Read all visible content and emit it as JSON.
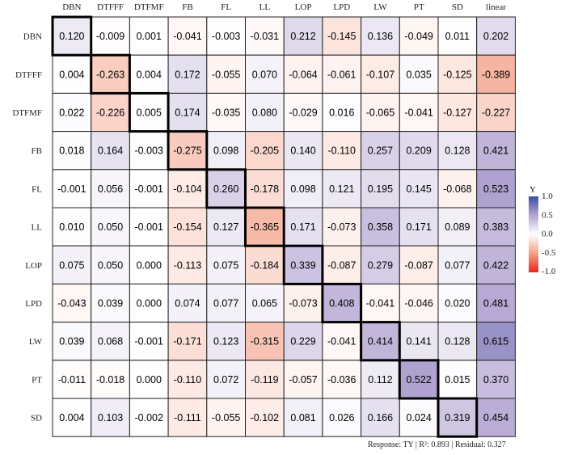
{
  "chart_data": {
    "type": "heatmap",
    "columns": [
      "DBN",
      "DTFFF",
      "DTFMF",
      "FB",
      "FL",
      "LL",
      "LOP",
      "LPD",
      "LW",
      "PT",
      "SD",
      "linear"
    ],
    "rows": [
      "DBN",
      "DTFFF",
      "DTFMF",
      "FB",
      "FL",
      "LL",
      "LOP",
      "LPD",
      "LW",
      "PT",
      "SD"
    ],
    "values": [
      [
        0.12,
        -0.009,
        0.001,
        -0.041,
        -0.003,
        -0.031,
        0.212,
        -0.145,
        0.136,
        -0.049,
        0.011,
        0.202
      ],
      [
        0.004,
        -0.263,
        0.004,
        0.172,
        -0.055,
        0.07,
        -0.064,
        -0.061,
        -0.107,
        0.035,
        -0.125,
        -0.389
      ],
      [
        0.022,
        -0.226,
        0.005,
        0.174,
        -0.035,
        0.08,
        -0.029,
        0.016,
        -0.065,
        -0.041,
        -0.127,
        -0.227
      ],
      [
        0.018,
        0.164,
        -0.003,
        -0.275,
        0.098,
        -0.205,
        0.14,
        -0.11,
        0.257,
        0.209,
        0.128,
        0.421
      ],
      [
        -0.001,
        0.056,
        -0.001,
        -0.104,
        0.26,
        -0.178,
        0.098,
        0.121,
        0.195,
        0.145,
        -0.068,
        0.523
      ],
      [
        0.01,
        0.05,
        -0.001,
        -0.154,
        0.127,
        -0.365,
        0.171,
        -0.073,
        0.358,
        0.171,
        0.089,
        0.383
      ],
      [
        0.075,
        0.05,
        0.0,
        -0.113,
        0.075,
        -0.184,
        0.339,
        -0.087,
        0.279,
        -0.087,
        0.077,
        0.422
      ],
      [
        -0.043,
        0.039,
        0.0,
        0.074,
        0.077,
        0.065,
        -0.073,
        0.408,
        -0.041,
        -0.046,
        0.02,
        0.481
      ],
      [
        0.039,
        0.068,
        -0.001,
        -0.171,
        0.123,
        -0.315,
        0.229,
        -0.041,
        0.414,
        0.141,
        0.128,
        0.615
      ],
      [
        -0.011,
        -0.018,
        0.0,
        -0.11,
        0.072,
        -0.119,
        -0.057,
        -0.036,
        0.112,
        0.522,
        0.015,
        0.37
      ],
      [
        0.004,
        0.103,
        -0.002,
        -0.111,
        -0.055,
        -0.102,
        0.081,
        0.026,
        0.166,
        0.024,
        0.319,
        0.454
      ]
    ],
    "legend": {
      "title": "Y",
      "ticks": [
        "1.0",
        "0.5",
        "0.0",
        "-0.5",
        "-1.0"
      ],
      "range": [
        -1,
        1
      ],
      "placement": "right"
    },
    "colors": {
      "low": "#e8261e",
      "mid": "#ffffff",
      "high": "#3d4ea0"
    },
    "highlight": "diagonal"
  },
  "footer": "Response: TY  |  R²: 0.893  |  Residual: 0.327"
}
